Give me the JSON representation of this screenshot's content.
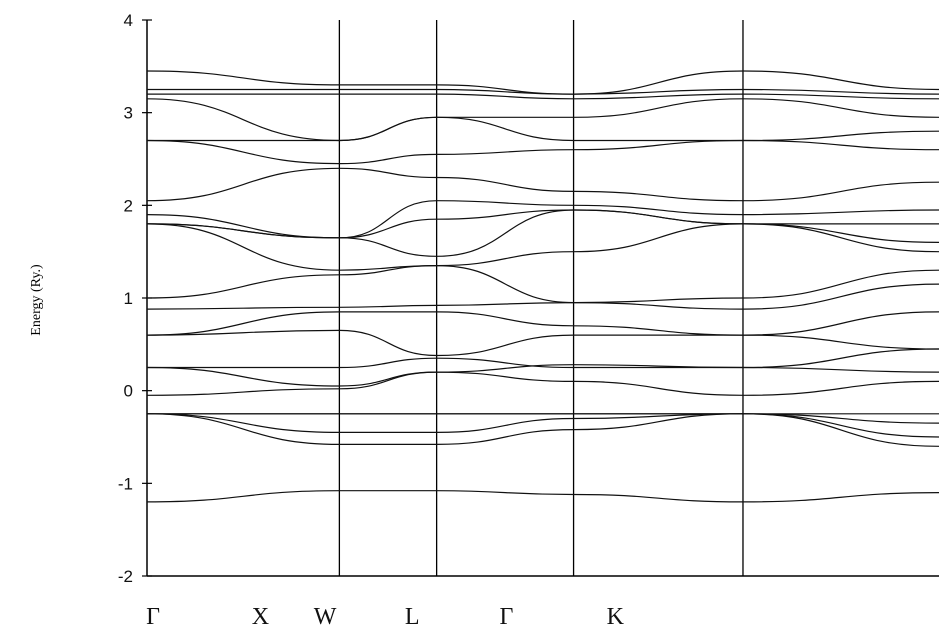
{
  "chart_data": {
    "type": "line",
    "title": "",
    "xlabel": "",
    "ylabel": "Energy (Ry.)",
    "ylim": [
      -2,
      4
    ],
    "yticks": [
      -2,
      -1,
      0,
      1,
      2,
      3,
      4
    ],
    "ytick_labels": [
      "-2",
      "-1",
      "0",
      "1",
      "2",
      "3",
      "4"
    ],
    "xlim": [
      0,
      1
    ],
    "vertical_lines": [
      0.2429,
      0.3657,
      0.5386,
      0.7525
    ],
    "kpoint_labels": [
      {
        "label": "Γ",
        "x": 0.0
      },
      {
        "label": "X",
        "x": 0.1356
      },
      {
        "label": "W",
        "x": 0.2173
      },
      {
        "label": "L",
        "x": 0.3273
      },
      {
        "label": "Γ",
        "x": 0.4462
      },
      {
        "label": "K",
        "x": 0.5837
      }
    ],
    "grid": false,
    "series": [
      {
        "x": [
          0,
          0.243,
          0.366,
          0.539,
          0.753,
          1.0
        ],
        "values": [
          -1.2,
          -1.08,
          -1.08,
          -1.12,
          -1.2,
          -1.1
        ]
      },
      {
        "x": [
          0,
          0.243,
          0.366,
          0.539,
          0.753,
          1.0
        ],
        "values": [
          -0.25,
          -0.58,
          -0.58,
          -0.42,
          -0.25,
          -0.6
        ]
      },
      {
        "x": [
          0,
          0.243,
          0.366,
          0.539,
          0.753,
          1.0
        ],
        "values": [
          -0.25,
          -0.45,
          -0.45,
          -0.3,
          -0.25,
          -0.5
        ]
      },
      {
        "x": [
          0,
          0.243,
          0.366,
          0.539,
          0.753,
          1.0
        ],
        "values": [
          -0.25,
          -0.25,
          -0.25,
          -0.25,
          -0.25,
          -0.35
        ]
      },
      {
        "x": [
          0,
          0.243,
          0.366,
          0.539,
          0.753,
          1.0
        ],
        "values": [
          -0.25,
          -0.25,
          -0.25,
          -0.25,
          -0.25,
          -0.25
        ]
      },
      {
        "x": [
          0,
          0.243,
          0.366,
          0.539,
          0.753,
          1.0
        ],
        "values": [
          -0.05,
          0.02,
          0.2,
          0.1,
          -0.05,
          0.1
        ]
      },
      {
        "x": [
          0,
          0.243,
          0.366,
          0.539,
          0.753,
          1.0
        ],
        "values": [
          0.25,
          0.05,
          0.2,
          0.28,
          0.25,
          0.45
        ]
      },
      {
        "x": [
          0,
          0.243,
          0.366,
          0.539,
          0.753,
          1.0
        ],
        "values": [
          0.25,
          0.25,
          0.35,
          0.25,
          0.25,
          0.2
        ]
      },
      {
        "x": [
          0,
          0.243,
          0.366,
          0.539,
          0.753,
          1.0
        ],
        "values": [
          0.6,
          0.65,
          0.38,
          0.6,
          0.6,
          0.45
        ]
      },
      {
        "x": [
          0,
          0.243,
          0.366,
          0.539,
          0.753,
          1.0
        ],
        "values": [
          0.6,
          0.85,
          0.85,
          0.7,
          0.6,
          0.85
        ]
      },
      {
        "x": [
          0,
          0.243,
          0.366,
          0.539,
          0.753,
          1.0
        ],
        "values": [
          0.88,
          0.9,
          0.92,
          0.95,
          0.88,
          1.15
        ]
      },
      {
        "x": [
          0,
          0.243,
          0.366,
          0.539,
          0.753,
          1.0
        ],
        "values": [
          1.0,
          1.25,
          1.35,
          0.95,
          1.0,
          1.3
        ]
      },
      {
        "x": [
          0,
          0.243,
          0.366,
          0.539,
          0.753,
          1.0
        ],
        "values": [
          1.8,
          1.3,
          1.35,
          1.5,
          1.8,
          1.5
        ]
      },
      {
        "x": [
          0,
          0.243,
          0.366,
          0.539,
          0.753,
          1.0
        ],
        "values": [
          1.8,
          1.65,
          1.45,
          1.95,
          1.8,
          1.6
        ]
      },
      {
        "x": [
          0,
          0.243,
          0.366,
          0.539,
          0.753,
          1.0
        ],
        "values": [
          1.8,
          1.65,
          1.85,
          1.95,
          1.8,
          1.8
        ]
      },
      {
        "x": [
          0,
          0.243,
          0.366,
          0.539,
          0.753,
          1.0
        ],
        "values": [
          1.9,
          1.65,
          2.05,
          2.0,
          1.9,
          1.95
        ]
      },
      {
        "x": [
          0,
          0.243,
          0.366,
          0.539,
          0.753,
          1.0
        ],
        "values": [
          2.05,
          2.4,
          2.3,
          2.15,
          2.05,
          2.25
        ]
      },
      {
        "x": [
          0,
          0.243,
          0.366,
          0.539,
          0.753,
          1.0
        ],
        "values": [
          2.7,
          2.45,
          2.55,
          2.6,
          2.7,
          2.6
        ]
      },
      {
        "x": [
          0,
          0.243,
          0.366,
          0.539,
          0.753,
          1.0
        ],
        "values": [
          2.7,
          2.7,
          2.95,
          2.7,
          2.7,
          2.8
        ]
      },
      {
        "x": [
          0,
          0.243,
          0.366,
          0.539,
          0.753,
          1.0
        ],
        "values": [
          3.15,
          2.7,
          2.95,
          2.95,
          3.15,
          2.95
        ]
      },
      {
        "x": [
          0,
          0.243,
          0.366,
          0.539,
          0.753,
          1.0
        ],
        "values": [
          3.2,
          3.2,
          3.2,
          3.15,
          3.2,
          3.15
        ]
      },
      {
        "x": [
          0,
          0.243,
          0.366,
          0.539,
          0.753,
          1.0
        ],
        "values": [
          3.25,
          3.25,
          3.25,
          3.2,
          3.25,
          3.2
        ]
      },
      {
        "x": [
          0,
          0.243,
          0.366,
          0.539,
          0.753,
          1.0
        ],
        "values": [
          3.45,
          3.3,
          3.3,
          3.2,
          3.45,
          3.25
        ]
      }
    ]
  }
}
